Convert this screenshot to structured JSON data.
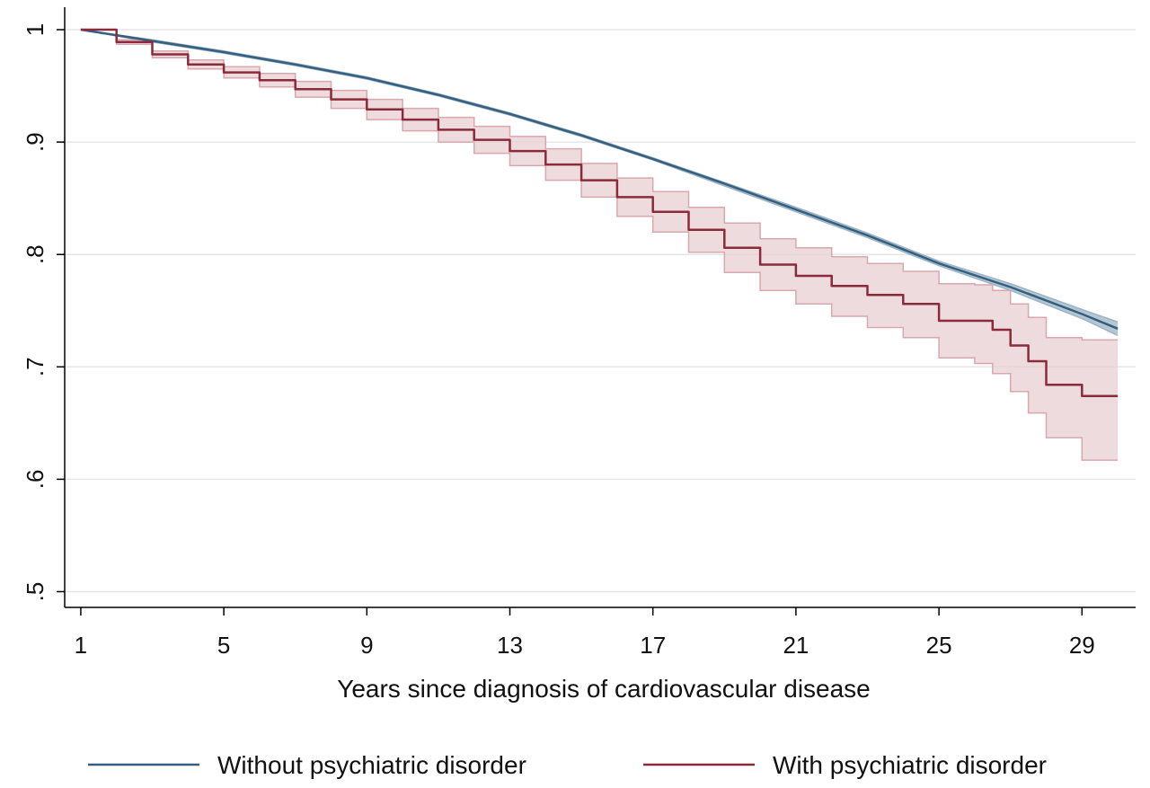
{
  "chart_data": {
    "type": "line",
    "title": "",
    "xlabel": "Years since diagnosis of cardiovascular disease",
    "ylabel": "",
    "xlim": [
      1,
      30
    ],
    "ylim": [
      0.5,
      1.0
    ],
    "x_ticks": [
      1,
      5,
      9,
      13,
      17,
      21,
      25,
      29
    ],
    "x_tick_labels": [
      "1",
      "5",
      "9",
      "13",
      "17",
      "21",
      "25",
      "29"
    ],
    "y_ticks": [
      0.5,
      0.6,
      0.7,
      0.8,
      0.9,
      1.0
    ],
    "y_tick_labels": [
      ".5",
      ".6",
      ".7",
      ".8",
      ".9",
      "1"
    ],
    "grid": "horizontal",
    "legend_position": "bottom",
    "series": [
      {
        "name": "Without psychiatric disorder",
        "color": "#34607f",
        "band_color": "#9db3c4",
        "x": [
          1,
          3,
          5,
          7,
          9,
          11,
          13,
          15,
          17,
          19,
          21,
          23,
          25,
          27,
          29,
          30
        ],
        "y": [
          1.0,
          0.99,
          0.98,
          0.969,
          0.957,
          0.942,
          0.925,
          0.906,
          0.885,
          0.863,
          0.84,
          0.817,
          0.792,
          0.771,
          0.747,
          0.734
        ],
        "lower": [
          1.0,
          0.989,
          0.979,
          0.968,
          0.956,
          0.941,
          0.924,
          0.905,
          0.884,
          0.861,
          0.838,
          0.815,
          0.79,
          0.768,
          0.743,
          0.728
        ],
        "upper": [
          1.0,
          0.991,
          0.981,
          0.97,
          0.958,
          0.943,
          0.926,
          0.907,
          0.886,
          0.864,
          0.842,
          0.819,
          0.794,
          0.774,
          0.751,
          0.74
        ]
      },
      {
        "name": "With psychiatric disorder",
        "color": "#8b2a3a",
        "band_color": "#e8cfd3",
        "band_edge_color": "#d9a7ae",
        "step": true,
        "x": [
          1,
          2,
          3,
          4,
          5,
          6,
          7,
          8,
          9,
          10,
          11,
          12,
          13,
          14,
          15,
          16,
          17,
          18,
          19,
          20,
          21,
          22,
          23,
          24,
          25,
          26,
          26.5,
          27,
          27.5,
          28,
          29,
          30
        ],
        "y": [
          1.0,
          0.989,
          0.978,
          0.969,
          0.962,
          0.955,
          0.947,
          0.938,
          0.929,
          0.92,
          0.911,
          0.902,
          0.892,
          0.88,
          0.866,
          0.851,
          0.838,
          0.822,
          0.806,
          0.791,
          0.781,
          0.772,
          0.764,
          0.756,
          0.741,
          0.741,
          0.733,
          0.719,
          0.705,
          0.684,
          0.674,
          0.674
        ],
        "lower": [
          1.0,
          0.987,
          0.975,
          0.965,
          0.957,
          0.949,
          0.94,
          0.93,
          0.92,
          0.91,
          0.9,
          0.89,
          0.879,
          0.866,
          0.851,
          0.834,
          0.82,
          0.802,
          0.784,
          0.768,
          0.756,
          0.745,
          0.735,
          0.726,
          0.708,
          0.703,
          0.694,
          0.678,
          0.659,
          0.637,
          0.617,
          0.617
        ],
        "upper": [
          1.0,
          0.991,
          0.981,
          0.973,
          0.967,
          0.961,
          0.954,
          0.946,
          0.938,
          0.93,
          0.922,
          0.914,
          0.905,
          0.894,
          0.881,
          0.868,
          0.856,
          0.842,
          0.828,
          0.814,
          0.806,
          0.798,
          0.792,
          0.785,
          0.774,
          0.773,
          0.768,
          0.756,
          0.744,
          0.726,
          0.724,
          0.724
        ]
      }
    ]
  }
}
